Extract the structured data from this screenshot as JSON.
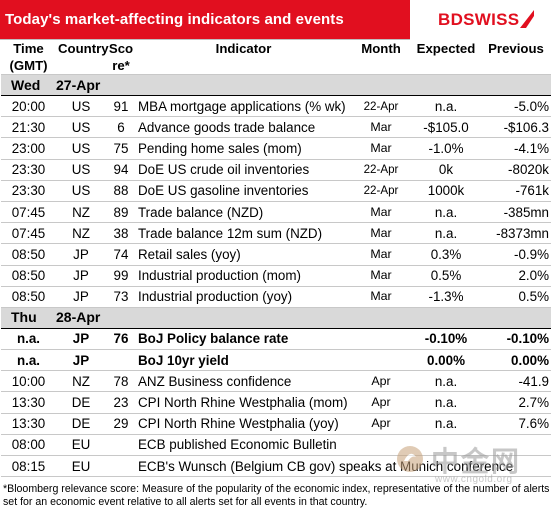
{
  "header": {
    "title": "Today's market-affecting indicators and events",
    "logo": "BDSWISS"
  },
  "columns": {
    "time_line1": "Time",
    "time_line2": "(GMT)",
    "country": "Country",
    "score_line1": "Sco",
    "score_line2": "re*",
    "indicator": "Indicator",
    "month": "Month",
    "expected": "Expected",
    "previous": "Previous"
  },
  "days": [
    {
      "weekday": "Wed",
      "date": "27-Apr",
      "rows": [
        {
          "time": "20:00",
          "country": "US",
          "score": "91",
          "indicator": "MBA mortgage applications (% wk)",
          "month": "22-Apr",
          "expected": "n.a.",
          "previous": "-5.0%"
        },
        {
          "time": "21:30",
          "country": "US",
          "score": "6",
          "indicator": "Advance goods trade balance",
          "month": "Mar",
          "expected": "-$105.0",
          "previous": "-$106.3"
        },
        {
          "time": "23:00",
          "country": "US",
          "score": "75",
          "indicator": "Pending home sales (mom)",
          "month": "Mar",
          "expected": "-1.0%",
          "previous": "-4.1%"
        },
        {
          "time": "23:30",
          "country": "US",
          "score": "94",
          "indicator": "DoE US crude oil inventories",
          "month": "22-Apr",
          "expected": "0k",
          "previous": "-8020k"
        },
        {
          "time": "23:30",
          "country": "US",
          "score": "88",
          "indicator": "DoE US gasoline inventories",
          "month": "22-Apr",
          "expected": "1000k",
          "previous": "-761k"
        },
        {
          "time": "07:45",
          "country": "NZ",
          "score": "89",
          "indicator": "Trade balance (NZD)",
          "month": "Mar",
          "expected": "n.a.",
          "previous": "-385mn"
        },
        {
          "time": "07:45",
          "country": "NZ",
          "score": "38",
          "indicator": "Trade balance 12m sum (NZD)",
          "month": "Mar",
          "expected": "n.a.",
          "previous": "-8373mn"
        },
        {
          "time": "08:50",
          "country": "JP",
          "score": "74",
          "indicator": "Retail sales (yoy)",
          "month": "Mar",
          "expected": "0.3%",
          "previous": "-0.9%"
        },
        {
          "time": "08:50",
          "country": "JP",
          "score": "99",
          "indicator": "Industrial production (mom)",
          "month": "Mar",
          "expected": "0.5%",
          "previous": "2.0%"
        },
        {
          "time": "08:50",
          "country": "JP",
          "score": "73",
          "indicator": "Industrial production (yoy)",
          "month": "Mar",
          "expected": "-1.3%",
          "previous": "0.5%"
        }
      ]
    },
    {
      "weekday": "Thu",
      "date": "28-Apr",
      "rows": [
        {
          "time": "n.a.",
          "country": "JP",
          "score": "76",
          "indicator": "BoJ  Policy balance rate",
          "month": "",
          "expected": "-0.10%",
          "previous": "-0.10%",
          "bold": true
        },
        {
          "time": "n.a.",
          "country": "JP",
          "score": "",
          "indicator": "BoJ 10yr yield",
          "month": "",
          "expected": "0.00%",
          "previous": "0.00%",
          "bold": true
        },
        {
          "time": "10:00",
          "country": "NZ",
          "score": "78",
          "indicator": "ANZ Business confidence",
          "month": "Apr",
          "expected": "n.a.",
          "previous": "-41.9"
        },
        {
          "time": "13:30",
          "country": "DE",
          "score": "23",
          "indicator": "CPI North Rhine Westphalia (mom)",
          "month": "Apr",
          "expected": "n.a.",
          "previous": "2.7%"
        },
        {
          "time": "13:30",
          "country": "DE",
          "score": "29",
          "indicator": "CPI North Rhine Westphalia (yoy)",
          "month": "Apr",
          "expected": "n.a.",
          "previous": "7.6%"
        },
        {
          "time": "08:00",
          "country": "EU",
          "score": "",
          "indicator": "ECB published Economic Bulletin",
          "month": "",
          "expected": "",
          "previous": ""
        },
        {
          "time": "08:15",
          "country": "EU",
          "score": "",
          "indicator": "ECB's Wunsch (Belgium CB gov) speaks at Munich conference",
          "month": "",
          "expected": "",
          "previous": ""
        }
      ]
    }
  ],
  "footnote": "*Bloomberg relevance score:  Measure of the popularity of the economic index, representative of the number of alerts set for an economic event relative to all alerts set for all events in that country.",
  "watermark": {
    "text": "中金网",
    "url": "www.cngold.org"
  },
  "colors": {
    "brand_red": "#e10f1f",
    "day_band": "#d9d9d9"
  }
}
